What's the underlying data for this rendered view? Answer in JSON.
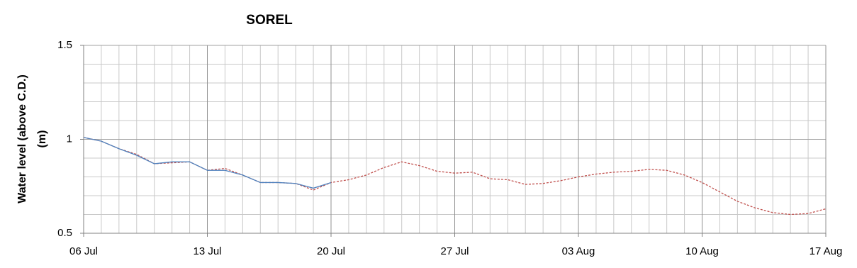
{
  "chart_data": {
    "type": "line",
    "title": "SOREL",
    "ylabel": [
      "Water level (above C.D.)",
      "(m)"
    ],
    "x": [
      "06 Jul",
      "07 Jul",
      "08 Jul",
      "09 Jul",
      "10 Jul",
      "11 Jul",
      "12 Jul",
      "13 Jul",
      "14 Jul",
      "15 Jul",
      "16 Jul",
      "17 Jul",
      "18 Jul",
      "19 Jul",
      "20 Jul",
      "21 Jul",
      "22 Jul",
      "23 Jul",
      "24 Jul",
      "25 Jul",
      "26 Jul",
      "27 Jul",
      "28 Jul",
      "29 Jul",
      "30 Jul",
      "31 Jul",
      "01 Aug",
      "02 Aug",
      "03 Aug",
      "04 Aug",
      "05 Aug",
      "06 Aug",
      "07 Aug",
      "08 Aug",
      "09 Aug",
      "10 Aug",
      "11 Aug",
      "12 Aug",
      "13 Aug",
      "14 Aug",
      "15 Aug",
      "16 Aug",
      "17 Aug"
    ],
    "series": [
      {
        "color": "#c0504d",
        "dashed": true,
        "values": [
          1.01,
          0.99,
          0.95,
          0.92,
          0.87,
          0.875,
          0.88,
          0.835,
          0.845,
          0.81,
          0.77,
          0.77,
          0.765,
          0.73,
          0.77,
          0.785,
          0.81,
          0.85,
          0.88,
          0.86,
          0.83,
          0.82,
          0.825,
          0.79,
          0.785,
          0.76,
          0.765,
          0.78,
          0.8,
          0.815,
          0.825,
          0.83,
          0.84,
          0.835,
          0.81,
          0.77,
          0.72,
          0.67,
          0.635,
          0.61,
          0.6,
          0.605,
          0.63
        ]
      },
      {
        "color": "#4f81bd",
        "dashed": false,
        "values": [
          1.01,
          0.99,
          0.95,
          0.915,
          0.87,
          0.88,
          0.88,
          0.835,
          0.835,
          0.81,
          0.77,
          0.77,
          0.765,
          0.74,
          0.77,
          null,
          null,
          null,
          null,
          null,
          null,
          null,
          null,
          null,
          null,
          null,
          null,
          null,
          null,
          null,
          null,
          null,
          null,
          null,
          null,
          null,
          null,
          null,
          null,
          null,
          null,
          null,
          null
        ]
      }
    ],
    "xlim": [
      "06 Jul",
      "17 Aug"
    ],
    "xticks": [
      "06 Jul",
      "13 Jul",
      "20 Jul",
      "27 Jul",
      "03 Aug",
      "10 Aug",
      "17 Aug"
    ],
    "ylim": [
      0.5,
      1.5
    ],
    "yticks": [
      0.5,
      1,
      1.5
    ],
    "grid": true
  }
}
